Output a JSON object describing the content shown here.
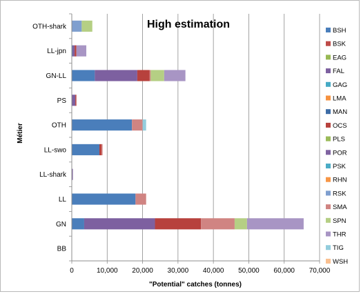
{
  "chart_data": {
    "type": "bar",
    "orientation": "horizontal",
    "stacked": true,
    "title": "High estimation",
    "xlabel": "\"Potential\" catches (tonnes)",
    "ylabel": "Métier",
    "xlim": [
      0,
      70000
    ],
    "x_ticks": [
      "0",
      "10,000",
      "20,000",
      "30,000",
      "40,000",
      "50,000",
      "60,000",
      "70,000"
    ],
    "grid": "vertical",
    "legend_position": "right",
    "categories": [
      "BB",
      "GN",
      "LL",
      "LL-shark",
      "LL-swo",
      "OTH",
      "PS",
      "GN-LL",
      "LL-jpn",
      "OTH-shark"
    ],
    "series": [
      {
        "name": "BSH",
        "color": "#4a7ebb",
        "values": [
          0,
          3500,
          18000,
          0,
          7800,
          17000,
          0,
          6500,
          200,
          0
        ]
      },
      {
        "name": "BSK",
        "color": "#be4b48",
        "values": [
          0,
          0,
          0,
          0,
          0,
          0,
          0,
          0,
          0,
          0
        ]
      },
      {
        "name": "EAG",
        "color": "#98b954",
        "values": [
          0,
          0,
          0,
          0,
          0,
          0,
          0,
          0,
          0,
          0
        ]
      },
      {
        "name": "FAL",
        "color": "#7d60a0",
        "values": [
          0,
          20000,
          0,
          300,
          0,
          0,
          1000,
          12000,
          600,
          0
        ]
      },
      {
        "name": "GAG",
        "color": "#46aac5",
        "values": [
          0,
          0,
          0,
          0,
          0,
          0,
          0,
          0,
          0,
          0
        ]
      },
      {
        "name": "LMA",
        "color": "#f69240",
        "values": [
          0,
          0,
          0,
          0,
          0,
          0,
          0,
          0,
          0,
          0
        ]
      },
      {
        "name": "MAN",
        "color": "#3d6ca6",
        "values": [
          0,
          0,
          0,
          0,
          0,
          0,
          0,
          0,
          0,
          0
        ]
      },
      {
        "name": "OCS",
        "color": "#b7413d",
        "values": [
          0,
          13000,
          0,
          0,
          600,
          0,
          300,
          3500,
          500,
          0
        ]
      },
      {
        "name": "PLS",
        "color": "#9bbb59",
        "values": [
          0,
          0,
          0,
          0,
          0,
          0,
          0,
          0,
          0,
          0
        ]
      },
      {
        "name": "POR",
        "color": "#7f63a1",
        "values": [
          0,
          0,
          0,
          0,
          0,
          0,
          0,
          0,
          0,
          0
        ]
      },
      {
        "name": "PSK",
        "color": "#4bacc6",
        "values": [
          0,
          0,
          0,
          0,
          0,
          0,
          0,
          0,
          0,
          0
        ]
      },
      {
        "name": "RHN",
        "color": "#f79646",
        "values": [
          0,
          0,
          0,
          0,
          0,
          0,
          0,
          0,
          0,
          0
        ]
      },
      {
        "name": "RSK",
        "color": "#7f9fcf",
        "values": [
          0,
          0,
          0,
          0,
          0,
          0,
          0,
          0,
          0,
          2800
        ]
      },
      {
        "name": "SMA",
        "color": "#d08482",
        "values": [
          0,
          9500,
          3000,
          0,
          300,
          3000,
          0,
          300,
          0,
          0
        ]
      },
      {
        "name": "SPN",
        "color": "#b5cf84",
        "values": [
          0,
          3500,
          0,
          0,
          0,
          0,
          0,
          3800,
          0,
          3000
        ]
      },
      {
        "name": "THR",
        "color": "#a895c4",
        "values": [
          0,
          16000,
          0,
          0,
          0,
          0,
          0,
          6000,
          2800,
          0
        ]
      },
      {
        "name": "TIG",
        "color": "#93cddd",
        "values": [
          0,
          0,
          0,
          0,
          0,
          1000,
          0,
          0,
          0,
          0
        ]
      },
      {
        "name": "WSH",
        "color": "#fac090",
        "values": [
          0,
          0,
          0,
          0,
          0,
          0,
          0,
          0,
          0,
          0
        ]
      }
    ]
  }
}
